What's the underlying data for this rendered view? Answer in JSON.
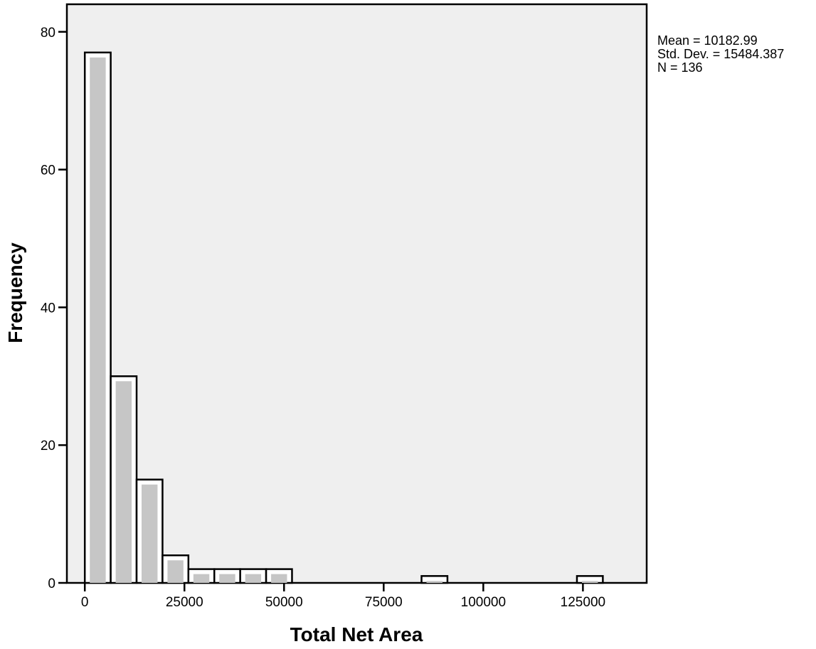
{
  "chart_data": {
    "type": "bar",
    "subtype": "histogram",
    "title": "",
    "xlabel": "Total Net Area",
    "ylabel": "Frequency",
    "bin_width": 6500,
    "bins": [
      {
        "start": 0,
        "end": 6500,
        "count": 77
      },
      {
        "start": 6500,
        "end": 13000,
        "count": 30
      },
      {
        "start": 13000,
        "end": 19500,
        "count": 15
      },
      {
        "start": 19500,
        "end": 26000,
        "count": 4
      },
      {
        "start": 26000,
        "end": 32500,
        "count": 2
      },
      {
        "start": 32500,
        "end": 39000,
        "count": 2
      },
      {
        "start": 39000,
        "end": 45500,
        "count": 2
      },
      {
        "start": 45500,
        "end": 52000,
        "count": 2
      },
      {
        "start": 52000,
        "end": 58500,
        "count": 0
      },
      {
        "start": 58500,
        "end": 65000,
        "count": 0
      },
      {
        "start": 65000,
        "end": 71500,
        "count": 0
      },
      {
        "start": 71500,
        "end": 78000,
        "count": 0
      },
      {
        "start": 78000,
        "end": 84500,
        "count": 0
      },
      {
        "start": 84500,
        "end": 91000,
        "count": 1
      },
      {
        "start": 91000,
        "end": 97500,
        "count": 0
      },
      {
        "start": 97500,
        "end": 104000,
        "count": 0
      },
      {
        "start": 104000,
        "end": 110500,
        "count": 0
      },
      {
        "start": 110500,
        "end": 117000,
        "count": 0
      },
      {
        "start": 117000,
        "end": 123500,
        "count": 0
      },
      {
        "start": 123500,
        "end": 130000,
        "count": 1
      }
    ],
    "xlim": [
      -4500,
      141000
    ],
    "ylim": [
      0,
      84
    ],
    "xticks": [
      0,
      25000,
      50000,
      75000,
      100000,
      125000
    ],
    "xtick_labels": [
      "0",
      "25000",
      "50000",
      "75000",
      "100000",
      "125000"
    ],
    "yticks": [
      0,
      20,
      40,
      60,
      80
    ],
    "ytick_labels": [
      "0",
      "20",
      "40",
      "60",
      "80"
    ],
    "grid": false,
    "legend": "none",
    "colors": {
      "plot_background": "#efefef",
      "bar_fill": "#c6c6c6",
      "bar_inner_border": "#ffffff",
      "bar_outline": "#000000",
      "axis": "#000000"
    }
  },
  "stats": {
    "mean": "Mean = 10182.99",
    "std_dev": "Std. Dev. = 15484.387",
    "n": "N = 136"
  }
}
